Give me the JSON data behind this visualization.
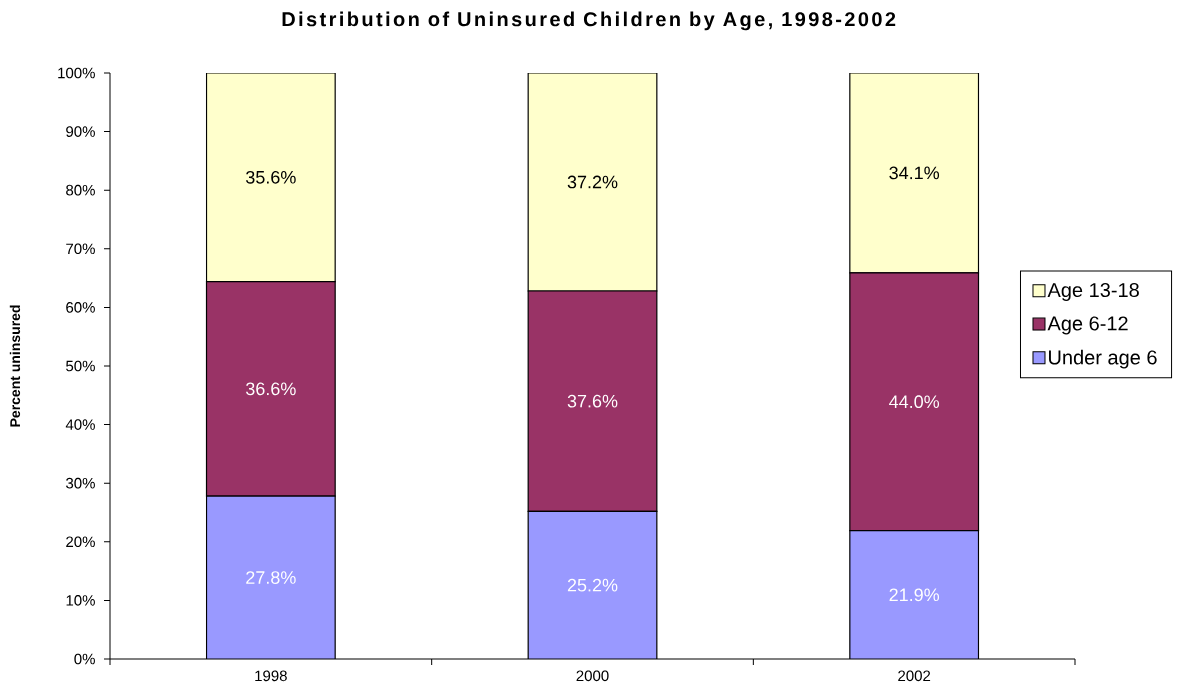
{
  "chart_data": {
    "type": "bar",
    "title": "Distribution of Uninsured Children by Age, 1998-2002",
    "ylabel": "Percent uninsured",
    "categories": [
      "1998",
      "2000",
      "2002"
    ],
    "stacked": true,
    "series": [
      {
        "name": "Under age 6",
        "color": "#9999ff",
        "values": [
          27.8,
          25.2,
          21.9
        ],
        "value_labels": [
          "27.8%",
          "25.2%",
          "21.9%"
        ]
      },
      {
        "name": "Age 6-12",
        "color": "#993366",
        "values": [
          36.6,
          37.6,
          44.0
        ],
        "value_labels": [
          "36.6%",
          "37.6%",
          "44.0%"
        ]
      },
      {
        "name": "Age 13-18",
        "color": "#ffffcc",
        "values": [
          35.6,
          37.2,
          34.1
        ],
        "value_labels": [
          "35.6%",
          "37.2%",
          "34.1%"
        ]
      }
    ],
    "ylim": [
      0,
      100
    ],
    "yticks": [
      {
        "value": 0,
        "label": "0%"
      },
      {
        "value": 10,
        "label": "10%"
      },
      {
        "value": 20,
        "label": "20%"
      },
      {
        "value": 30,
        "label": "30%"
      },
      {
        "value": 40,
        "label": "40%"
      },
      {
        "value": 50,
        "label": "50%"
      },
      {
        "value": 60,
        "label": "60%"
      },
      {
        "value": 70,
        "label": "70%"
      },
      {
        "value": 80,
        "label": "80%"
      },
      {
        "value": 90,
        "label": "90%"
      },
      {
        "value": 100,
        "label": "100%"
      }
    ],
    "legend": "right"
  }
}
